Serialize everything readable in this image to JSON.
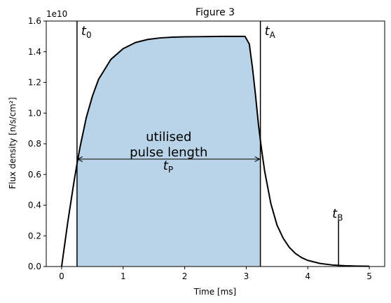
{
  "chart_data": {
    "type": "area",
    "title": "Figure 3",
    "xlabel": "Time [ms]",
    "ylabel": "Flux density [n/s/cm²]",
    "y_multiplier": "1e10",
    "xlim": [
      -0.25,
      5.25
    ],
    "ylim": [
      0,
      16000000000.0
    ],
    "xticks": [
      0,
      1,
      2,
      3,
      4,
      5
    ],
    "xtick_labels": [
      "0",
      "1",
      "2",
      "3",
      "4",
      "5"
    ],
    "yticks": [
      0,
      2000000000.0,
      4000000000.0,
      6000000000.0,
      8000000000.0,
      10000000000.0,
      12000000000.0,
      14000000000.0,
      16000000000.0
    ],
    "ytick_labels": [
      "0.0",
      "0.2",
      "0.4",
      "0.6",
      "0.8",
      "1.0",
      "1.2",
      "1.4",
      "1.6"
    ],
    "grid": false,
    "series": [
      {
        "color": "#000000",
        "fill_color": "#b9d4e8",
        "x": [
          0.0,
          0.1,
          0.2,
          0.25,
          0.3,
          0.4,
          0.5,
          0.6,
          0.8,
          1.0,
          1.2,
          1.4,
          1.6,
          1.8,
          2.0,
          2.2,
          2.4,
          2.6,
          2.8,
          2.98,
          3.05,
          3.1,
          3.15,
          3.2,
          3.25,
          3.3,
          3.4,
          3.5,
          3.6,
          3.7,
          3.8,
          3.9,
          4.0,
          4.2,
          4.4,
          4.6,
          4.8,
          5.0
        ],
        "y": [
          0.0,
          2900000000.0,
          5500000000.0,
          6700000000.0,
          7800000000.0,
          9700000000.0,
          11100000000.0,
          12200000000.0,
          13500000000.0,
          14200000000.0,
          14600000000.0,
          14800000000.0,
          14900000000.0,
          14950000000.0,
          14970000000.0,
          14980000000.0,
          14990000000.0,
          15000000000.0,
          15000000000.0,
          15000000000.0,
          14500000000.0,
          13000000000.0,
          11200000000.0,
          9200000000.0,
          7600000000.0,
          6200000000.0,
          4100000000.0,
          2700000000.0,
          1850000000.0,
          1250000000.0,
          850000000.0,
          580000000.0,
          400000000.0,
          200000000.0,
          100000000.0,
          50000000.0,
          30000000.0,
          15000000.0
        ]
      }
    ],
    "fill_range": [
      0.25,
      3.23
    ],
    "vlines": [
      {
        "x": 0.25,
        "y0": 0,
        "y1": 16000000000.0,
        "label_main": "t",
        "label_sub": "0"
      },
      {
        "x": 3.23,
        "y0": 0,
        "y1": 16000000000.0,
        "label_main": "t",
        "label_sub": "A"
      },
      {
        "x": 4.5,
        "y0": 0,
        "y1": 3000000000.0,
        "label_main": "t",
        "label_sub": "B"
      }
    ],
    "arrow": {
      "x0": 0.25,
      "x1": 3.23,
      "y": 7000000000.0
    },
    "annotation_text_line1": "utilised",
    "annotation_text_line2": "pulse length",
    "tp_label_main": "t",
    "tp_label_sub": "P"
  }
}
